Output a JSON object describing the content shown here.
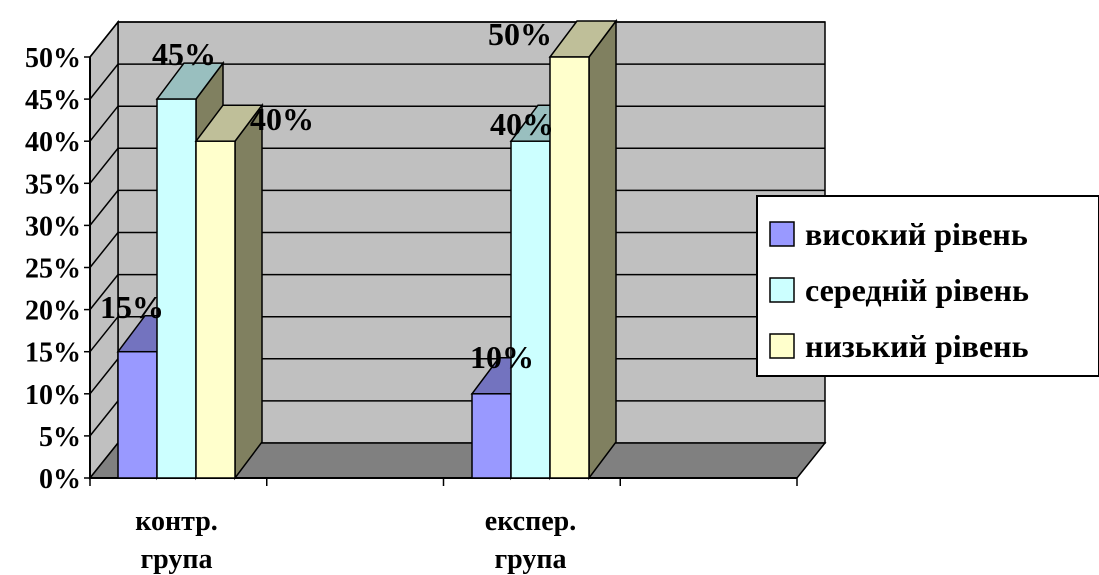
{
  "chart_data": {
    "type": "bar",
    "categories": [
      [
        "контр.",
        "група"
      ],
      [
        "експер.",
        "група"
      ]
    ],
    "series": [
      {
        "name": "високий рівень",
        "values": [
          15,
          10
        ],
        "labels": [
          "15%",
          "10%"
        ],
        "color": "#9999ff"
      },
      {
        "name": "середній рівень",
        "values": [
          45,
          40
        ],
        "labels": [
          "45%",
          "40%"
        ],
        "color": "#ccffff"
      },
      {
        "name": "низький рівень",
        "values": [
          40,
          50
        ],
        "labels": [
          "40%",
          "50%"
        ],
        "color": "#ffffcc"
      }
    ],
    "ylim": [
      0,
      50
    ],
    "yticks": [
      "0%",
      "5%",
      "10%",
      "15%",
      "20%",
      "25%",
      "30%",
      "35%",
      "40%",
      "45%",
      "50%"
    ],
    "grid": true,
    "legend_position": "right",
    "wall_color": "#c0c0c0",
    "floor_color": "#808080"
  }
}
